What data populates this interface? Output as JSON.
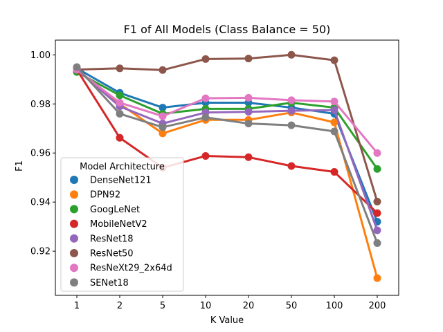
{
  "chart_data": {
    "type": "line",
    "title": "F1 of All Models (Class Balance = 50)",
    "xlabel": "K Value",
    "ylabel": "F1",
    "categories": [
      "1",
      "2",
      "5",
      "10",
      "20",
      "50",
      "100",
      "200"
    ],
    "ylim": [
      0.902,
      1.006
    ],
    "yticks": [
      0.92,
      0.94,
      0.96,
      0.98,
      1.0
    ],
    "ytick_labels": [
      "0.92",
      "0.94",
      "0.96",
      "0.98",
      "1.00"
    ],
    "grid": false,
    "legend": {
      "title": "Model Architecture",
      "placement": "lower-left"
    },
    "series": [
      {
        "name": "DenseNet121",
        "color": "#1f77b4",
        "values": [
          0.9945,
          0.9845,
          0.9785,
          0.9805,
          0.9805,
          0.9785,
          0.976,
          0.932
        ]
      },
      {
        "name": "DPN92",
        "color": "#ff7f0e",
        "values": [
          0.994,
          0.98,
          0.968,
          0.9735,
          0.9735,
          0.9765,
          0.9725,
          0.909
        ]
      },
      {
        "name": "GoogLeNet",
        "color": "#2ca02c",
        "values": [
          0.993,
          0.9835,
          0.976,
          0.978,
          0.978,
          0.9805,
          0.9785,
          0.9535
        ]
      },
      {
        "name": "MobileNetV2",
        "color": "#d62728",
        "values": [
          0.994,
          0.9662,
          0.954,
          0.9588,
          0.9583,
          0.9547,
          0.9523,
          0.9355
        ]
      },
      {
        "name": "ResNet18",
        "color": "#9467bd",
        "values": [
          0.994,
          0.979,
          0.972,
          0.9765,
          0.9768,
          0.9772,
          0.9775,
          0.9285
        ]
      },
      {
        "name": "ResNet50",
        "color": "#8c564b",
        "values": [
          0.994,
          0.9945,
          0.9938,
          0.9983,
          0.9985,
          1.0,
          0.9978,
          0.9402
        ]
      },
      {
        "name": "ResNeXt29_2x64d",
        "color": "#e377c2",
        "values": [
          0.994,
          0.9805,
          0.975,
          0.9823,
          0.9825,
          0.9815,
          0.981,
          0.96
        ]
      },
      {
        "name": "SENet18",
        "color": "#7f7f7f",
        "values": [
          0.995,
          0.976,
          0.9705,
          0.9745,
          0.972,
          0.9713,
          0.9688,
          0.9233
        ]
      }
    ]
  }
}
